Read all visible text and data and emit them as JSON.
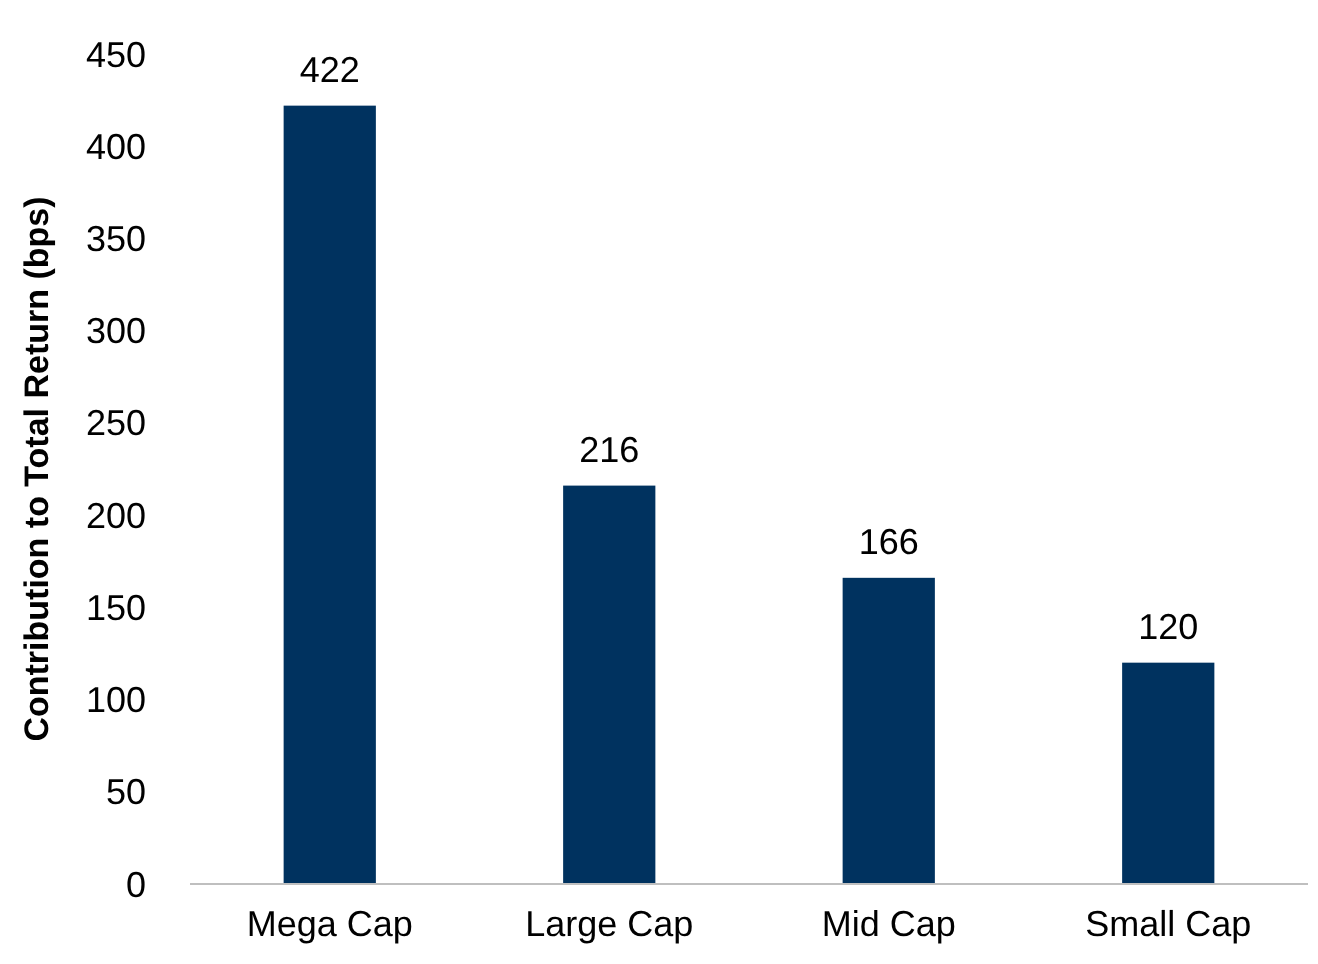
{
  "chart_data": {
    "type": "bar",
    "ylabel": "Contribution to Total Return (bps)",
    "categories": [
      "Mega Cap",
      "Large Cap",
      "Mid Cap",
      "Small Cap"
    ],
    "values": [
      422,
      216,
      166,
      120
    ],
    "color": "#00325f",
    "ylim": [
      0,
      450
    ],
    "yticks": [
      0,
      50,
      100,
      150,
      200,
      250,
      300,
      350,
      400,
      450
    ],
    "data_labels": true
  }
}
